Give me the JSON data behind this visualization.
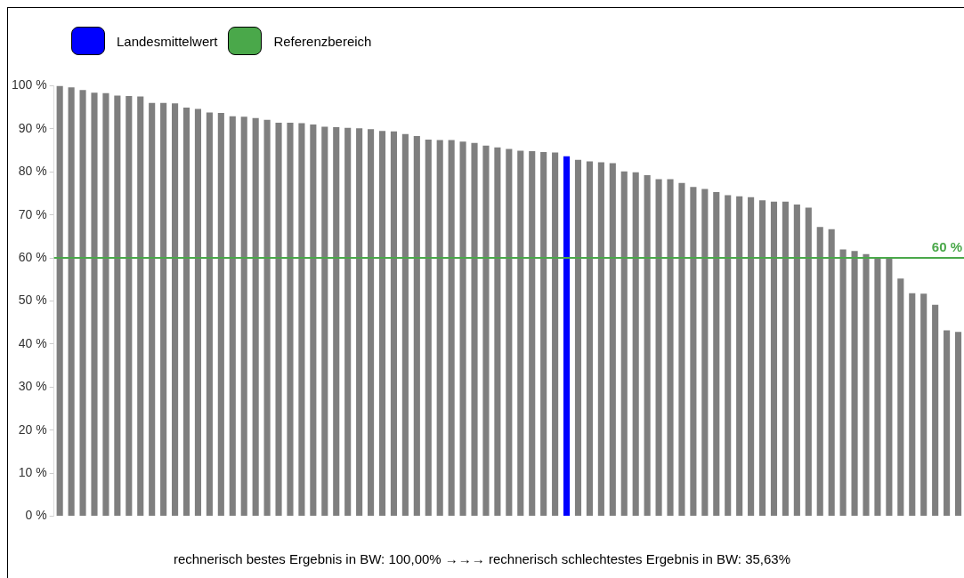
{
  "chart_data": {
    "type": "bar",
    "categories": [
      null,
      null,
      null,
      null,
      null,
      null,
      null,
      null,
      null,
      null,
      null,
      null,
      null,
      null,
      null,
      null,
      null,
      null,
      null,
      null,
      null,
      null,
      null,
      null,
      null,
      null,
      null,
      null,
      null,
      null,
      null,
      null,
      null,
      null,
      null,
      null,
      null,
      null,
      null,
      null,
      null,
      null,
      null,
      null,
      null,
      null,
      null,
      null,
      null,
      null,
      null,
      null,
      null,
      null,
      null,
      null,
      null,
      null,
      null,
      null,
      null,
      null,
      null,
      null,
      null,
      null,
      null,
      null,
      null,
      null,
      null,
      null,
      null,
      null,
      null,
      null,
      null,
      null,
      null
    ],
    "series": [
      {
        "color": "#7f7f7f",
        "values": [
          100,
          99.6,
          99.0,
          98.4,
          98.3,
          97.7,
          97.6,
          97.5,
          96.0,
          96.0,
          95.9,
          94.9,
          94.6,
          93.8,
          93.7,
          92.9,
          92.8,
          92.5,
          92.1,
          91.4,
          91.4,
          91.3,
          91.0,
          90.5,
          90.4,
          90.2,
          90.1,
          89.9,
          89.5,
          89.4,
          88.8,
          88.3,
          87.5,
          87.4,
          87.4,
          87.0,
          86.7,
          86.1,
          85.7,
          85.3,
          84.9,
          84.8,
          84.6,
          84.5,
          null,
          82.8,
          82.4,
          82.2,
          82.0,
          80.1,
          79.9,
          79.2,
          78.3,
          78.3,
          77.4,
          76.5,
          76.0,
          75.3,
          74.6,
          74.3,
          74.1,
          73.4,
          73.1,
          73.1,
          72.4,
          71.7,
          67.2,
          66.7,
          62.0,
          61.6,
          60.9,
          59.9,
          59.9,
          55.2,
          51.8,
          51.7,
          49.1,
          43.2,
          42.8
        ]
      },
      {
        "name": "Landesmittelwert",
        "color": "#0000ff",
        "values": [
          null,
          null,
          null,
          null,
          null,
          null,
          null,
          null,
          null,
          null,
          null,
          null,
          null,
          null,
          null,
          null,
          null,
          null,
          null,
          null,
          null,
          null,
          null,
          null,
          null,
          null,
          null,
          null,
          null,
          null,
          null,
          null,
          null,
          null,
          null,
          null,
          null,
          null,
          null,
          null,
          null,
          null,
          null,
          null,
          83.6,
          null,
          null,
          null,
          null,
          null,
          null,
          null,
          null,
          null,
          null,
          null,
          null,
          null,
          null,
          null,
          null,
          null,
          null,
          null,
          null,
          null,
          null,
          null,
          null,
          null,
          null,
          null,
          null,
          null,
          null,
          null,
          null,
          null,
          null
        ]
      }
    ],
    "ref_lines": [
      {
        "axis": "y",
        "value": 60,
        "label": "Referenzbereich",
        "color": "#4aa84a"
      }
    ],
    "ylim": [
      0,
      100
    ],
    "yticks": [
      {
        "value": 0,
        "label": "0 %"
      },
      {
        "value": 10,
        "label": "10 %"
      },
      {
        "value": 20,
        "label": "20 %"
      },
      {
        "value": 30,
        "label": "30 %"
      },
      {
        "value": 40,
        "label": "40 %"
      },
      {
        "value": 50,
        "label": "50 %"
      },
      {
        "value": 60,
        "label": "60 %"
      },
      {
        "value": 70,
        "label": "70 %"
      },
      {
        "value": 80,
        "label": "80 %"
      },
      {
        "value": 90,
        "label": "90 %"
      },
      {
        "value": 100,
        "label": "100 %"
      }
    ],
    "legend": "top left",
    "grid": false,
    "annotations": [
      {
        "text": "60 %",
        "y": 60
      },
      "rechnerisch bestes Ergebnis in BW: 100,00% →→→ rechnerisch schlechtestes Ergebnis in BW: 35,63%"
    ]
  }
}
